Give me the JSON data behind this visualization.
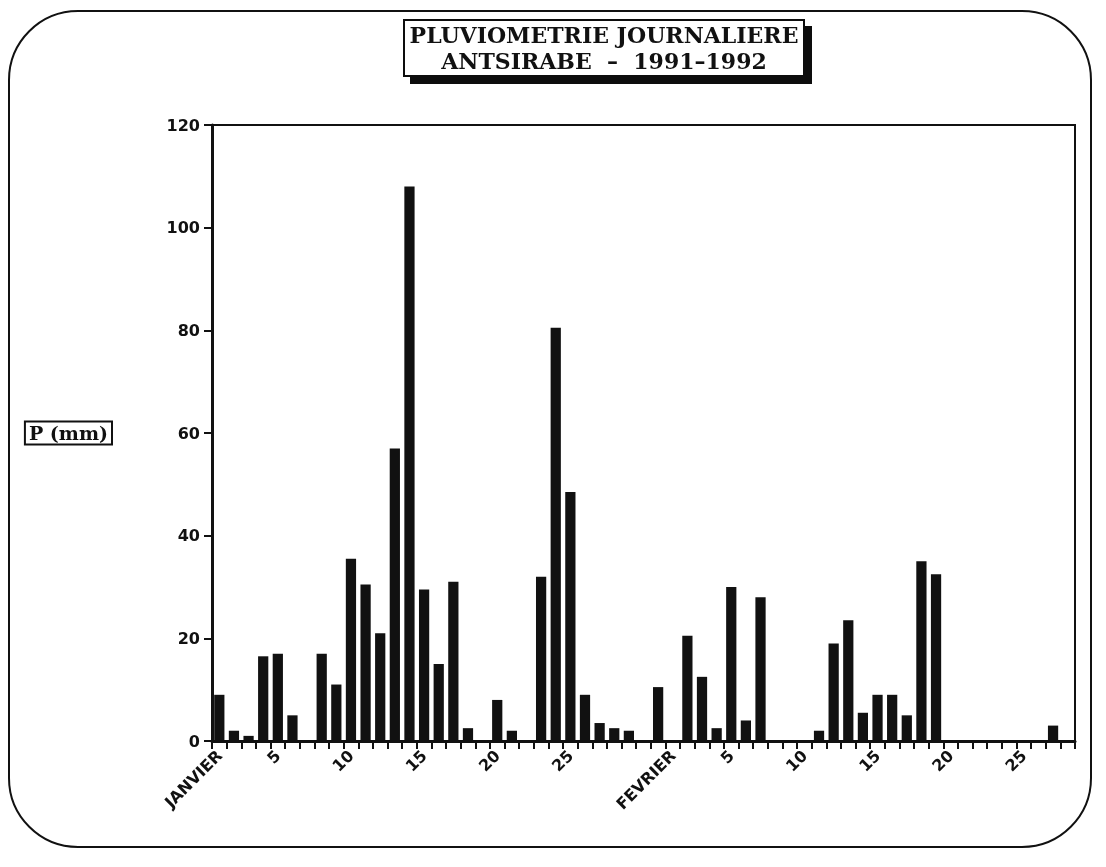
{
  "chart_data": {
    "type": "bar",
    "title": "PLUVIOMETRIE JOURNALIERE\nANTSIRABE  –  1991–1992",
    "ylabel": "P (mm)",
    "categories": [
      "JANVIER",
      null,
      null,
      null,
      "5",
      null,
      null,
      null,
      null,
      "10",
      null,
      null,
      null,
      null,
      "15",
      null,
      null,
      null,
      null,
      "20",
      null,
      null,
      null,
      null,
      "25",
      null,
      null,
      null,
      null,
      null,
      null,
      "FEVRIER",
      null,
      null,
      null,
      "5",
      null,
      null,
      null,
      null,
      "10",
      null,
      null,
      null,
      null,
      "15",
      null,
      null,
      null,
      null,
      "20",
      null,
      null,
      null,
      null,
      "25",
      null,
      null,
      null
    ],
    "values": [
      9,
      2,
      1,
      16.5,
      17,
      5,
      0,
      17,
      11,
      35.5,
      30.5,
      21,
      57,
      108,
      29.5,
      15,
      31,
      2.5,
      0,
      8,
      2,
      0,
      32,
      80.5,
      48.5,
      9,
      3.5,
      2.5,
      2,
      0,
      10.5,
      0,
      20.5,
      12.5,
      2.5,
      30,
      4,
      28,
      0,
      0,
      0,
      2,
      19,
      23.5,
      5.5,
      9,
      9,
      5,
      35,
      32.5,
      0,
      0,
      0,
      0,
      0,
      0,
      0,
      3,
      0
    ],
    "color": "#111111",
    "ylim": [
      0,
      120
    ],
    "yticks": [
      0,
      20,
      40,
      60,
      80,
      100,
      120
    ],
    "grid": false
  }
}
